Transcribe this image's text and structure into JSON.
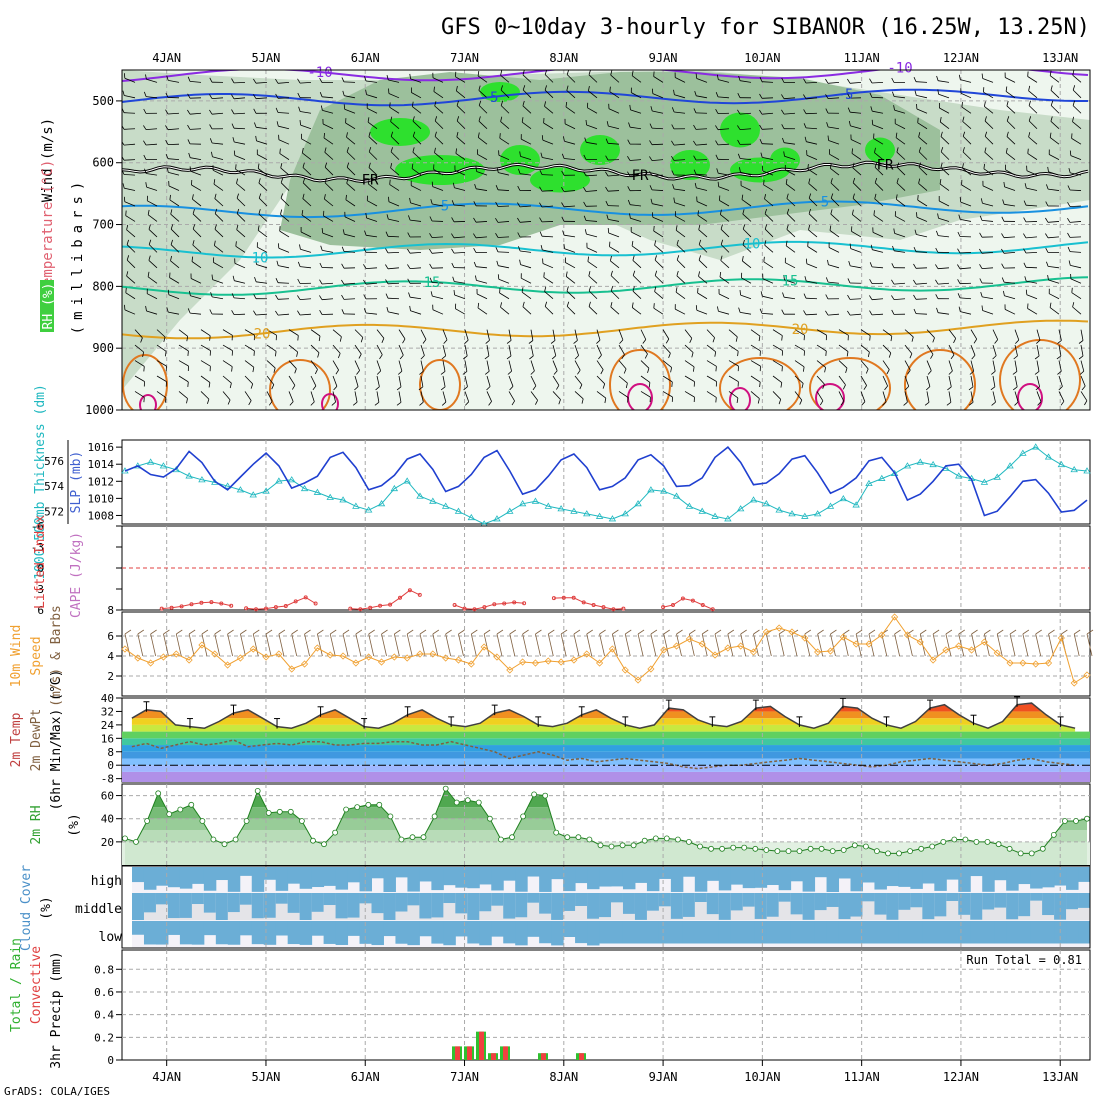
{
  "title": "GFS 0~10day 3-hourly for SIBANOR (16.25W, 13.25N)",
  "credit": "GrADS: COLA/IGES",
  "x_axis": {
    "date_labels": [
      "4JAN",
      "5JAN",
      "6JAN",
      "7JAN",
      "8JAN",
      "9JAN",
      "10JAN",
      "11JAN",
      "12JAN",
      "13JAN"
    ],
    "range_days": [
      -0.45,
      9.3
    ]
  },
  "panels": {
    "upper_air": {
      "ylabel_wind": "Wind (m/s)",
      "ylabel_temp": "Temperature (°C)",
      "ylabel_rh": "RH (%)",
      "ylabel_p": "(millibars)",
      "yticks": [
        "500",
        "600",
        "700",
        "800",
        "900",
        "1000"
      ],
      "freezing_label": "FR",
      "isotherm_labels": [
        "-10",
        "-5",
        "5",
        "10",
        "15",
        "20"
      ]
    },
    "thickness_slp": {
      "ylabel_thk": "1000-500mb Thickness (dm)",
      "ylabel_slp": "SLP (mb)",
      "left_ticks": [
        "576",
        "574",
        "572"
      ],
      "right_ticks": [
        "1016",
        "1014",
        "1012",
        "1010",
        "1008"
      ]
    },
    "lifted_cape": {
      "ylabel_li": "Lifted Index",
      "ylabel_cape": "CAPE (J/kg)",
      "left_ticks": [
        "-6",
        "-3",
        "0",
        "3",
        "6"
      ],
      "right_ticks": [
        "8"
      ]
    },
    "wind10m": {
      "ylabel_1": "10m Wind",
      "ylabel_2": "Speed",
      "ylabel_3": "(m/s) & Barbs",
      "ticks": [
        "6",
        "4",
        "2"
      ]
    },
    "temp2m": {
      "ylabel_1": "2m Temp",
      "ylabel_2": "2m DewPt",
      "ylabel_3": "(6hr Min/Max) (°C)",
      "ticks": [
        "40",
        "32",
        "24",
        "16",
        "8",
        "0",
        "-8"
      ]
    },
    "rh2m": {
      "ylabel_1": "2m RH",
      "ylabel_2": "(%)",
      "ticks": [
        "60",
        "40",
        "20"
      ]
    },
    "cloud": {
      "ylabel_1": "Cloud Cover",
      "ylabel_2": "(%)",
      "levels": [
        "high",
        "middle",
        "low"
      ]
    },
    "precip": {
      "ylabel_1": "Total / Rain",
      "ylabel_2": "Convective",
      "ylabel_3": "3hr Precip (mm)",
      "ticks": [
        "0.8",
        "0.6",
        "0.4",
        "0.2",
        "0"
      ],
      "run_total": "Run Total = 0.81"
    }
  },
  "colors": {
    "slp": "#2040d0",
    "thickness": "#20b8c0",
    "lifted_index": "#e04040",
    "wind_speed": "#f0a030",
    "rh_green": "#60c060",
    "cloud_blue": "#6baed6",
    "precip_total": "#30c030",
    "precip_conv": "#f04040"
  },
  "chart_data": [
    {
      "type": "line",
      "series": [
        {
          "name": "SLP (mb)",
          "values": [
            1013.2,
            1013.8,
            1012.8,
            1012.5,
            1013.5,
            1015.5,
            1014.2,
            1012.0,
            1011.0,
            1012.5,
            1014.0,
            1015.3,
            1013.8,
            1011.2,
            1011.8,
            1012.6,
            1014.8,
            1015.4,
            1013.6,
            1011.0,
            1011.5,
            1012.7,
            1014.6,
            1015.2,
            1013.4,
            1010.8,
            1011.4,
            1012.8,
            1014.8,
            1015.6,
            1013.2,
            1010.5,
            1011.0,
            1012.6,
            1014.5,
            1015.2,
            1013.6,
            1011.0,
            1011.4,
            1012.4,
            1014.5,
            1015.1,
            1013.8,
            1011.4,
            1011.5,
            1012.4,
            1014.8,
            1016.0,
            1014.2,
            1011.6,
            1011.8,
            1012.9,
            1014.6,
            1015.0,
            1013.0,
            1010.6,
            1011.3,
            1012.4,
            1014.4,
            1014.8,
            1013.0,
            1009.8,
            1010.5,
            1012.0,
            1013.8,
            1014.0,
            1012.2,
            1008.0,
            1008.5,
            1010.2,
            1012.0,
            1012.2,
            1010.6,
            1008.4,
            1008.6,
            1009.8
          ]
        },
        {
          "name": "1000-500mb Thickness (dm)",
          "values": [
            575.2,
            575.6,
            575.9,
            575.6,
            575.3,
            574.8,
            574.5,
            574.3,
            574.0,
            573.7,
            573.3,
            573.6,
            574.4,
            574.5,
            573.8,
            573.5,
            573.1,
            572.9,
            572.4,
            572.1,
            572.6,
            573.8,
            574.4,
            573.2,
            572.8,
            572.4,
            572.0,
            571.5,
            571.0,
            571.4,
            572.0,
            572.6,
            572.8,
            572.4,
            572.2,
            572.0,
            571.8,
            571.6,
            571.4,
            571.8,
            572.6,
            573.7,
            573.6,
            573.2,
            572.4,
            572.0,
            571.6,
            571.4,
            572.2,
            572.9,
            572.6,
            572.1,
            571.8,
            571.6,
            571.8,
            572.4,
            573.0,
            572.5,
            574.2,
            574.6,
            575.0,
            575.6,
            575.9,
            575.7,
            575.4,
            574.8,
            574.6,
            574.3,
            574.7,
            575.6,
            576.6,
            577.1,
            576.3,
            575.7,
            575.3,
            575.2
          ]
        }
      ]
    },
    {
      "type": "line",
      "series": [
        {
          "name": "Lifted Index",
          "values": [
            7.6,
            7.4,
            7.0,
            6.4,
            6.0,
            5.8,
            6.2,
            6.8,
            7.5,
            7.8,
            7.6,
            7.2,
            6.9,
            5.6,
            4.5,
            6.2,
            7.6,
            7.8,
            7.4,
            6.8,
            6.5,
            4.6,
            2.5,
            3.8,
            6.6,
            7.6,
            7.8,
            7.2,
            6.4,
            6.2,
            5.9,
            6.1,
            4.7,
            4.6,
            4.6,
            5.9,
            6.6,
            7.2,
            7.8,
            7.6,
            7.2,
            6.6,
            4.8,
            5.4,
            6.6,
            7.8
          ]
        }
      ]
    },
    {
      "type": "line",
      "series": [
        {
          "name": "10m Wind Speed (m/s)",
          "values": [
            4.7,
            3.8,
            3.3,
            3.9,
            4.2,
            3.6,
            5.1,
            4.2,
            3.1,
            3.8,
            4.7,
            3.9,
            4.2,
            2.7,
            3.2,
            4.8,
            4.1,
            4.0,
            3.3,
            3.9,
            3.4,
            3.9,
            3.8,
            4.2,
            4.2,
            3.8,
            3.6,
            3.2,
            4.9,
            3.9,
            2.6,
            3.4,
            3.3,
            3.5,
            3.4,
            3.6,
            4.2,
            3.3,
            4.7,
            2.6,
            1.6,
            2.7,
            4.6,
            5.0,
            5.7,
            5.2,
            4.1,
            4.8,
            5.0,
            4.4,
            6.4,
            6.8,
            6.4,
            5.8,
            4.4,
            4.5,
            5.9,
            5.2,
            5.2,
            6.1,
            7.9,
            6.1,
            5.4,
            3.6,
            4.6,
            5.0,
            4.6,
            5.4,
            4.3,
            3.3,
            3.3,
            3.2,
            3.3,
            5.8,
            1.3,
            2.1
          ]
        }
      ]
    },
    {
      "type": "line",
      "series": [
        {
          "name": "2m Temp (°C)",
          "values": [
            28,
            33,
            32,
            24,
            23,
            22,
            26,
            31,
            33,
            28,
            23,
            22,
            25,
            30,
            33,
            28,
            23,
            22,
            25,
            30,
            33,
            28,
            24,
            23,
            25,
            31,
            33,
            29,
            24,
            23,
            25,
            30,
            33,
            28,
            24,
            22,
            24,
            34,
            33,
            27,
            24,
            23,
            26,
            34,
            35,
            29,
            24,
            22,
            25,
            35,
            34,
            28,
            24,
            22,
            26,
            34,
            36,
            30,
            25,
            22,
            26,
            36,
            37,
            30,
            24,
            22
          ]
        },
        {
          "name": "2m DewPt (°C)",
          "values": [
            11,
            13,
            10,
            12,
            14,
            12,
            13,
            15,
            11,
            12,
            13,
            12,
            14,
            14,
            12,
            12,
            13,
            13,
            14,
            14,
            12,
            12,
            14,
            12,
            10,
            8,
            4,
            6,
            8,
            6,
            3,
            4,
            2,
            3,
            4,
            3,
            2,
            1,
            -1,
            -2,
            -1,
            0,
            0,
            1,
            2,
            3,
            4,
            3,
            2,
            1,
            0,
            -1,
            0,
            2,
            3,
            4,
            3,
            2,
            1,
            0,
            1,
            3,
            4,
            2,
            1,
            0
          ]
        }
      ]
    },
    {
      "type": "area",
      "series": [
        {
          "name": "2m RH (%)",
          "values": [
            23,
            20,
            38,
            62,
            44,
            48,
            52,
            38,
            22,
            18,
            22,
            38,
            64,
            45,
            46,
            46,
            38,
            21,
            18,
            28,
            48,
            50,
            52,
            52,
            42,
            22,
            24,
            24,
            42,
            66,
            54,
            56,
            54,
            40,
            22,
            24,
            42,
            61,
            60,
            28,
            24,
            24,
            22,
            17,
            16,
            17,
            17,
            21,
            23,
            23,
            22,
            20,
            16,
            14,
            14,
            15,
            15,
            14,
            13,
            12,
            12,
            12,
            14,
            14,
            12,
            13,
            17,
            16,
            12,
            10,
            10,
            12,
            14,
            16,
            20,
            22,
            22,
            20,
            20,
            18,
            14,
            10,
            10,
            14,
            26,
            38,
            38,
            40
          ]
        }
      ]
    },
    {
      "type": "bar",
      "series": [
        {
          "name": "3hr Precip Total (mm)",
          "values": [
            0.12,
            0.12,
            0.25,
            0.06,
            0.12,
            0.0,
            0.06,
            0.06
          ]
        },
        {
          "name": "3hr Precip Convective (mm)",
          "values": [
            0.12,
            0.12,
            0.25,
            0.06,
            0.12,
            0.0,
            0.06,
            0.06
          ]
        }
      ]
    }
  ]
}
